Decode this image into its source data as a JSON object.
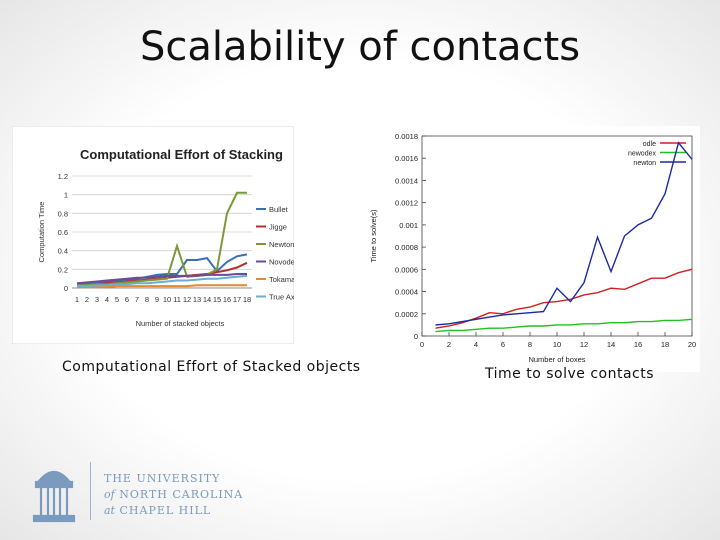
{
  "slide": {
    "title": "Scalability of contacts"
  },
  "captions": {
    "left": "Computational Effort of Stacked objects",
    "right": "Time to solve contacts"
  },
  "logo": {
    "line1": "THE UNIVERSITY",
    "line2_prefix": "of",
    "line2": "NORTH CAROLINA",
    "line3_prefix": "at",
    "line3": "CHAPEL HILL"
  },
  "chart_data": [
    {
      "type": "line",
      "title": "Computational Effort of Stacking",
      "xlabel": "Number of stacked objects",
      "ylabel": "Computation Time",
      "ylim": [
        0,
        1.2
      ],
      "yticks": [
        "0",
        "0.2",
        "0.4",
        "0.6",
        "0.8",
        "1",
        "1.2"
      ],
      "categories": [
        "1",
        "2",
        "3",
        "4",
        "5",
        "6",
        "7",
        "8",
        "9",
        "10",
        "11",
        "12",
        "13",
        "14",
        "15",
        "16",
        "17",
        "18"
      ],
      "legend_position": "right",
      "grid": "horizontal",
      "series": [
        {
          "name": "Bullet",
          "color": "#3a6fb0",
          "values": [
            0.04,
            0.05,
            0.06,
            0.07,
            0.08,
            0.09,
            0.1,
            0.12,
            0.14,
            0.15,
            0.15,
            0.3,
            0.3,
            0.32,
            0.18,
            0.28,
            0.34,
            0.36
          ]
        },
        {
          "name": "Jigge",
          "color": "#b03030",
          "values": [
            0.02,
            0.03,
            0.04,
            0.05,
            0.06,
            0.07,
            0.08,
            0.09,
            0.1,
            0.11,
            0.12,
            0.13,
            0.14,
            0.15,
            0.17,
            0.19,
            0.22,
            0.27
          ]
        },
        {
          "name": "Newton",
          "color": "#7a9a3a",
          "values": [
            0.03,
            0.03,
            0.04,
            0.04,
            0.05,
            0.06,
            0.07,
            0.08,
            0.09,
            0.1,
            0.45,
            0.12,
            0.13,
            0.14,
            0.2,
            0.8,
            1.02,
            1.02
          ]
        },
        {
          "name": "Novodex",
          "color": "#6a4a9a",
          "values": [
            0.05,
            0.06,
            0.07,
            0.08,
            0.09,
            0.1,
            0.11,
            0.11,
            0.12,
            0.13,
            0.13,
            0.13,
            0.13,
            0.14,
            0.14,
            0.14,
            0.15,
            0.15
          ]
        },
        {
          "name": "Tokamak",
          "color": "#e08a30",
          "values": [
            0.01,
            0.01,
            0.01,
            0.01,
            0.02,
            0.02,
            0.02,
            0.02,
            0.02,
            0.02,
            0.02,
            0.02,
            0.03,
            0.03,
            0.03,
            0.03,
            0.03,
            0.03
          ]
        },
        {
          "name": "True Axis",
          "color": "#6aaed0",
          "values": [
            0.02,
            0.02,
            0.03,
            0.03,
            0.04,
            0.04,
            0.05,
            0.05,
            0.06,
            0.07,
            0.08,
            0.08,
            0.09,
            0.1,
            0.1,
            0.11,
            0.12,
            0.13
          ]
        }
      ]
    },
    {
      "type": "line",
      "title": "",
      "xlabel": "Number of boxes",
      "ylabel": "Time to solve(s)",
      "xlim": [
        0,
        20
      ],
      "ylim": [
        0,
        0.0018
      ],
      "xticks": [
        "0",
        "2",
        "4",
        "6",
        "8",
        "10",
        "12",
        "14",
        "16",
        "18",
        "20"
      ],
      "yticks": [
        "0",
        "0.0002",
        "0.0004",
        "0.0006",
        "0.0008",
        "0.001",
        "0.0012",
        "0.0014",
        "0.0016",
        "0.0018"
      ],
      "legend_position": "top-right",
      "grid": "horizontal",
      "series": [
        {
          "name": "odle",
          "color": "#d02020",
          "x": [
            1,
            2,
            3,
            4,
            5,
            6,
            7,
            8,
            9,
            10,
            11,
            12,
            13,
            14,
            15,
            16,
            17,
            18,
            19,
            20
          ],
          "values": [
            7e-05,
            9e-05,
            0.00012,
            0.00016,
            0.00021,
            0.0002,
            0.00024,
            0.00026,
            0.0003,
            0.00031,
            0.00033,
            0.00037,
            0.00039,
            0.00043,
            0.00042,
            0.00047,
            0.00052,
            0.00052,
            0.00057,
            0.0006
          ]
        },
        {
          "name": "newodex",
          "color": "#20c020",
          "x": [
            1,
            2,
            3,
            4,
            5,
            6,
            7,
            8,
            9,
            10,
            11,
            12,
            13,
            14,
            15,
            16,
            17,
            18,
            19,
            20
          ],
          "values": [
            4e-05,
            5e-05,
            5e-05,
            6e-05,
            7e-05,
            7e-05,
            8e-05,
            9e-05,
            9e-05,
            0.0001,
            0.0001,
            0.00011,
            0.00011,
            0.00012,
            0.00012,
            0.00013,
            0.00013,
            0.00014,
            0.00014,
            0.00015
          ]
        },
        {
          "name": "newton",
          "color": "#1a2aa0",
          "x": [
            1,
            2,
            3,
            4,
            5,
            6,
            7,
            8,
            9,
            10,
            11,
            12,
            13,
            14,
            15,
            16,
            17,
            18,
            19,
            20
          ],
          "values": [
            0.0001,
            0.00011,
            0.00013,
            0.00015,
            0.00017,
            0.00019,
            0.0002,
            0.00021,
            0.00022,
            0.00043,
            0.00031,
            0.00048,
            0.00089,
            0.00058,
            0.0009,
            0.001,
            0.00106,
            0.00128,
            0.00174,
            0.00159
          ]
        }
      ]
    }
  ]
}
